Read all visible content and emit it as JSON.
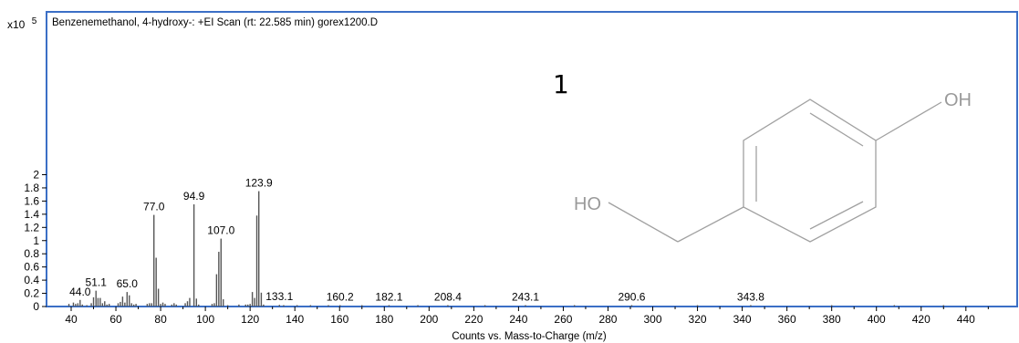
{
  "chart_data": {
    "type": "bar",
    "title": "Benzenemethanol, 4-hydroxy-: +EI Scan (rt: 22.585 min) gorex1200.D",
    "xlabel": "Counts vs. Mass-to-Charge (m/z)",
    "ylabel": "",
    "y_multiplier": "x10",
    "y_multiplier_exp": "5",
    "xlim": [
      33,
      458
    ],
    "ylim": [
      0,
      2.05
    ],
    "xticks": [
      40,
      60,
      80,
      100,
      120,
      140,
      160,
      180,
      200,
      220,
      240,
      260,
      280,
      300,
      320,
      340,
      360,
      380,
      400,
      420,
      440
    ],
    "yticks": [
      0,
      0.2,
      0.4,
      0.6,
      0.8,
      1,
      1.2,
      1.4,
      1.6,
      1.8,
      2
    ],
    "ytick_labels": [
      "0",
      "0.2",
      "0.4",
      "0.6",
      "0.8",
      "1",
      "1.2",
      "1.4",
      "1.6",
      "1.8",
      "2"
    ],
    "grid": false,
    "legend": "none",
    "bar_color": "#555555",
    "frame_color": "#3b6fc6",
    "peaks": [
      {
        "x": 39.0,
        "y": 0.04
      },
      {
        "x": 41.0,
        "y": 0.06
      },
      {
        "x": 42.0,
        "y": 0.04
      },
      {
        "x": 43.0,
        "y": 0.05
      },
      {
        "x": 44.0,
        "y": 0.1,
        "label": "44.0"
      },
      {
        "x": 45.0,
        "y": 0.03
      },
      {
        "x": 47.0,
        "y": 0.02
      },
      {
        "x": 49.0,
        "y": 0.05
      },
      {
        "x": 50.0,
        "y": 0.14
      },
      {
        "x": 51.1,
        "y": 0.24,
        "label": "51.1"
      },
      {
        "x": 52.0,
        "y": 0.13
      },
      {
        "x": 53.0,
        "y": 0.13
      },
      {
        "x": 54.0,
        "y": 0.05
      },
      {
        "x": 55.0,
        "y": 0.08
      },
      {
        "x": 56.0,
        "y": 0.03
      },
      {
        "x": 57.0,
        "y": 0.04
      },
      {
        "x": 61.0,
        "y": 0.05
      },
      {
        "x": 62.0,
        "y": 0.07
      },
      {
        "x": 63.0,
        "y": 0.15
      },
      {
        "x": 64.0,
        "y": 0.06
      },
      {
        "x": 65.0,
        "y": 0.22,
        "label": "65.0"
      },
      {
        "x": 66.0,
        "y": 0.17
      },
      {
        "x": 67.0,
        "y": 0.05
      },
      {
        "x": 68.0,
        "y": 0.03
      },
      {
        "x": 69.0,
        "y": 0.04
      },
      {
        "x": 74.0,
        "y": 0.04
      },
      {
        "x": 75.0,
        "y": 0.05
      },
      {
        "x": 76.0,
        "y": 0.05
      },
      {
        "x": 77.0,
        "y": 1.39,
        "label": "77.0"
      },
      {
        "x": 78.0,
        "y": 0.74
      },
      {
        "x": 79.0,
        "y": 0.27
      },
      {
        "x": 80.0,
        "y": 0.04
      },
      {
        "x": 81.0,
        "y": 0.06
      },
      {
        "x": 82.0,
        "y": 0.04
      },
      {
        "x": 85.0,
        "y": 0.03
      },
      {
        "x": 86.0,
        "y": 0.05
      },
      {
        "x": 87.0,
        "y": 0.03
      },
      {
        "x": 91.0,
        "y": 0.05
      },
      {
        "x": 92.0,
        "y": 0.08
      },
      {
        "x": 93.0,
        "y": 0.13
      },
      {
        "x": 94.9,
        "y": 1.55,
        "label": "94.9"
      },
      {
        "x": 96.0,
        "y": 0.12
      },
      {
        "x": 97.0,
        "y": 0.03
      },
      {
        "x": 103.0,
        "y": 0.04
      },
      {
        "x": 104.0,
        "y": 0.05
      },
      {
        "x": 105.0,
        "y": 0.49
      },
      {
        "x": 106.0,
        "y": 0.83
      },
      {
        "x": 107.0,
        "y": 1.03,
        "label": "107.0"
      },
      {
        "x": 108.0,
        "y": 0.11
      },
      {
        "x": 110.0,
        "y": 0.02
      },
      {
        "x": 115.0,
        "y": 0.03
      },
      {
        "x": 118.0,
        "y": 0.03
      },
      {
        "x": 119.0,
        "y": 0.03
      },
      {
        "x": 120.0,
        "y": 0.04
      },
      {
        "x": 121.0,
        "y": 0.22
      },
      {
        "x": 122.0,
        "y": 0.13
      },
      {
        "x": 123.0,
        "y": 1.38
      },
      {
        "x": 123.9,
        "y": 1.75,
        "label": "123.9"
      },
      {
        "x": 125.0,
        "y": 0.21
      },
      {
        "x": 126.0,
        "y": 0.03
      },
      {
        "x": 133.1,
        "y": 0.025,
        "label": "133.1"
      },
      {
        "x": 135.0,
        "y": 0.02
      },
      {
        "x": 141.0,
        "y": 0.02
      },
      {
        "x": 147.0,
        "y": 0.015
      },
      {
        "x": 155.0,
        "y": 0.015
      },
      {
        "x": 160.2,
        "y": 0.012,
        "label": "160.2"
      },
      {
        "x": 170.0,
        "y": 0.01
      },
      {
        "x": 182.1,
        "y": 0.012,
        "label": "182.1"
      },
      {
        "x": 195.0,
        "y": 0.01
      },
      {
        "x": 208.4,
        "y": 0.01,
        "label": "208.4"
      },
      {
        "x": 225.0,
        "y": 0.008
      },
      {
        "x": 243.1,
        "y": 0.01,
        "label": "243.1"
      },
      {
        "x": 265.0,
        "y": 0.008
      },
      {
        "x": 290.6,
        "y": 0.01,
        "label": "290.6"
      },
      {
        "x": 320.0,
        "y": 0.007
      },
      {
        "x": 343.8,
        "y": 0.008,
        "label": "343.8"
      },
      {
        "x": 380.0,
        "y": 0.006
      },
      {
        "x": 408.0,
        "y": 0.008
      },
      {
        "x": 430.0,
        "y": 0.006
      }
    ],
    "inset": {
      "compound_number": "1",
      "hydroxyl_label": "OH",
      "hydroxymethyl_label": "HO"
    }
  }
}
